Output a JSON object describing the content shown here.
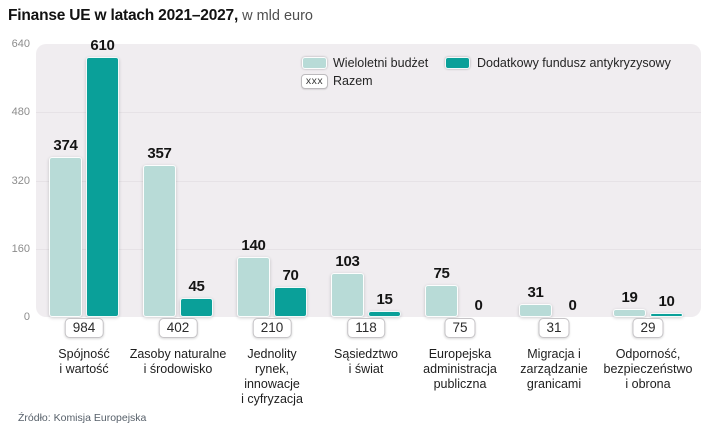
{
  "header": {
    "title": "Finanse UE w latach 2021–2027,",
    "subtitle": "w mld euro"
  },
  "legend": {
    "total_badge_text": "xxx",
    "total_label": "Razem"
  },
  "source": "Źródło: Komisja Europejska",
  "chart_data": {
    "type": "bar",
    "title": "Finanse UE w latach 2021–2027, w mld euro",
    "categories": [
      [
        "Spójność",
        "i wartość"
      ],
      [
        "Zasoby naturalne",
        "i środowisko"
      ],
      [
        "Jednolity",
        "rynek,",
        "innowacje",
        "i cyfryzacja"
      ],
      [
        "Sąsiedztwo",
        "i świat"
      ],
      [
        "Europejska",
        "administracja",
        "publiczna"
      ],
      [
        "Migracja i",
        "zarządzanie",
        "granicami"
      ],
      [
        "Odporność,",
        "bezpieczeństwo",
        "i obrona"
      ]
    ],
    "series": [
      {
        "name": "Wieloletni budżet",
        "color": "#b8dbd7",
        "values": [
          374,
          357,
          140,
          103,
          75,
          31,
          19
        ]
      },
      {
        "name": "Dodatkowy fundusz antykryzysowy",
        "color": "#0aa099",
        "values": [
          610,
          45,
          70,
          15,
          0,
          0,
          10
        ]
      }
    ],
    "totals": [
      984,
      402,
      210,
      118,
      75,
      31,
      29
    ],
    "totals_label": "Razem",
    "y_ticks": [
      0,
      160,
      320,
      480,
      640
    ],
    "ylim": [
      0,
      640
    ],
    "grid": true,
    "legend_position": "top-right",
    "source": "Źródło: Komisja Europejska"
  }
}
